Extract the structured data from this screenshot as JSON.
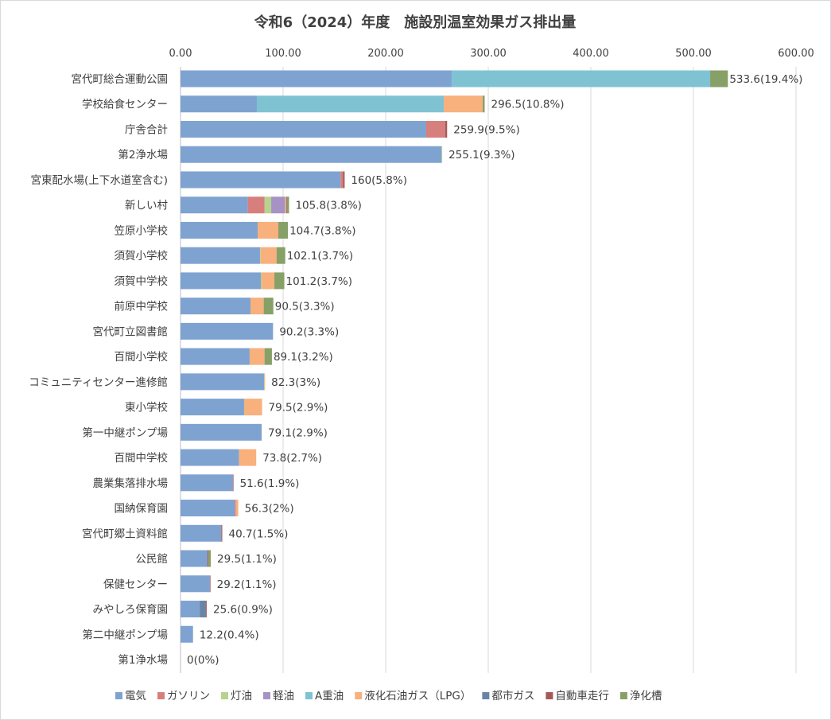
{
  "chart_data": {
    "type": "bar",
    "orientation": "horizontal",
    "stacked": true,
    "title": "令和6（2024）年度　施設別温室効果ガス排出量",
    "xlim": [
      0,
      600
    ],
    "xticks": [
      "0.00",
      "100.00",
      "200.00",
      "300.00",
      "400.00",
      "500.00",
      "600.00"
    ],
    "grid": true,
    "legend_position": "bottom",
    "series": [
      {
        "name": "電気",
        "color": "#7fa3d1"
      },
      {
        "name": "ガソリン",
        "color": "#d67f7c"
      },
      {
        "name": "灯油",
        "color": "#b7d38d"
      },
      {
        "name": "軽油",
        "color": "#a792c5"
      },
      {
        "name": "A重油",
        "color": "#7fc3d3"
      },
      {
        "name": "液化石油ガス（LPG）",
        "color": "#f8b07c"
      },
      {
        "name": "都市ガス",
        "color": "#6a84a6"
      },
      {
        "name": "自動車走行",
        "color": "#a45a59"
      },
      {
        "name": "浄化槽",
        "color": "#87a067"
      }
    ],
    "categories": [
      {
        "name": "宮代町総合運動公園",
        "label": "533.6(19.4%)",
        "values": [
          264.3,
          0,
          0,
          0,
          252,
          0,
          0,
          0,
          17.3
        ]
      },
      {
        "name": "学校給食センター",
        "label": "296.5(10.8%)",
        "values": [
          74.4,
          0,
          0,
          0,
          182.2,
          38,
          0,
          0,
          1.9
        ]
      },
      {
        "name": "庁舎合計",
        "label": "259.9(9.5%)",
        "values": [
          239.5,
          18.6,
          0,
          0,
          0,
          0,
          0,
          1.8,
          0
        ]
      },
      {
        "name": "第2浄水場",
        "label": "255.1(9.3%)",
        "values": [
          254.5,
          0,
          0.6,
          0,
          0,
          0,
          0,
          0,
          0
        ]
      },
      {
        "name": "宮東配水場(上下水道室含む)",
        "label": "160(5.8%)",
        "values": [
          156,
          2.5,
          0,
          0,
          0,
          0,
          0,
          1.5,
          0
        ]
      },
      {
        "name": "新しい村",
        "label": "105.8(3.8%)",
        "values": [
          65.6,
          16.4,
          6.4,
          13.7,
          0,
          1,
          0,
          0.5,
          2.2
        ]
      },
      {
        "name": "笠原小学校",
        "label": "104.7(3.8%)",
        "values": [
          75.2,
          0,
          0,
          0,
          0,
          20.1,
          0,
          0,
          9.4
        ]
      },
      {
        "name": "須賀小学校",
        "label": "102.1(3.7%)",
        "values": [
          77.5,
          0,
          0.6,
          0,
          0,
          15.5,
          0,
          0,
          8.5
        ]
      },
      {
        "name": "須賀中学校",
        "label": "101.2(3.7%)",
        "values": [
          78.3,
          0,
          0.8,
          0,
          0,
          12.4,
          0,
          0,
          9.7
        ]
      },
      {
        "name": "前原中学校",
        "label": "90.5(3.3%)",
        "values": [
          68.2,
          0,
          0,
          0,
          0,
          12.9,
          0,
          0,
          9.4
        ]
      },
      {
        "name": "宮代町立図書館",
        "label": "90.2(3.3%)",
        "values": [
          90.2,
          0,
          0,
          0,
          0,
          0,
          0,
          0,
          0
        ]
      },
      {
        "name": "百間小学校",
        "label": "89.1(3.2%)",
        "values": [
          67.4,
          0,
          0,
          0,
          0,
          14.5,
          0,
          0,
          7.2
        ]
      },
      {
        "name": "コミュニティセンター進修館",
        "label": "82.3(3%)",
        "values": [
          81.5,
          0,
          0.3,
          0,
          0,
          0.5,
          0,
          0,
          0
        ]
      },
      {
        "name": "東小学校",
        "label": "79.5(2.9%)",
        "values": [
          62,
          0,
          0.3,
          0,
          0,
          17.2,
          0,
          0,
          0
        ]
      },
      {
        "name": "第一中継ポンプ場",
        "label": "79.1(2.9%)",
        "values": [
          79.1,
          0,
          0,
          0,
          0,
          0,
          0,
          0,
          0
        ]
      },
      {
        "name": "百間中学校",
        "label": "73.8(2.7%)",
        "values": [
          57.1,
          0,
          0,
          0,
          0,
          16.7,
          0,
          0,
          0
        ]
      },
      {
        "name": "農業集落排水場",
        "label": "51.6(1.9%)",
        "values": [
          51.3,
          0.3,
          0,
          0,
          0,
          0,
          0,
          0,
          0
        ]
      },
      {
        "name": "国納保育園",
        "label": "56.3(2%)",
        "values": [
          53,
          1,
          0,
          0,
          0,
          2.3,
          0,
          0,
          0
        ]
      },
      {
        "name": "宮代町郷土資料館",
        "label": "40.7(1.5%)",
        "values": [
          39.8,
          0,
          0,
          0,
          0,
          0,
          0,
          0.9,
          0
        ]
      },
      {
        "name": "公民館",
        "label": "29.5(1.1%)",
        "values": [
          26.3,
          0,
          0,
          0,
          0,
          0,
          0,
          1,
          2.2
        ]
      },
      {
        "name": "保健センター",
        "label": "29.2(1.1%)",
        "values": [
          28.5,
          0,
          0,
          0,
          0,
          0,
          0,
          0.7,
          0
        ]
      },
      {
        "name": "みやしろ保育園",
        "label": "25.6(0.9%)",
        "values": [
          18.7,
          0,
          0,
          0,
          0,
          0,
          6.2,
          0.7,
          0
        ]
      },
      {
        "name": "第二中継ポンプ場",
        "label": "12.2(0.4%)",
        "values": [
          12.2,
          0,
          0,
          0,
          0,
          0,
          0,
          0,
          0
        ]
      },
      {
        "name": "第1浄水場",
        "label": "0(0%)",
        "values": [
          0,
          0,
          0,
          0,
          0,
          0,
          0,
          0,
          0
        ]
      }
    ]
  }
}
